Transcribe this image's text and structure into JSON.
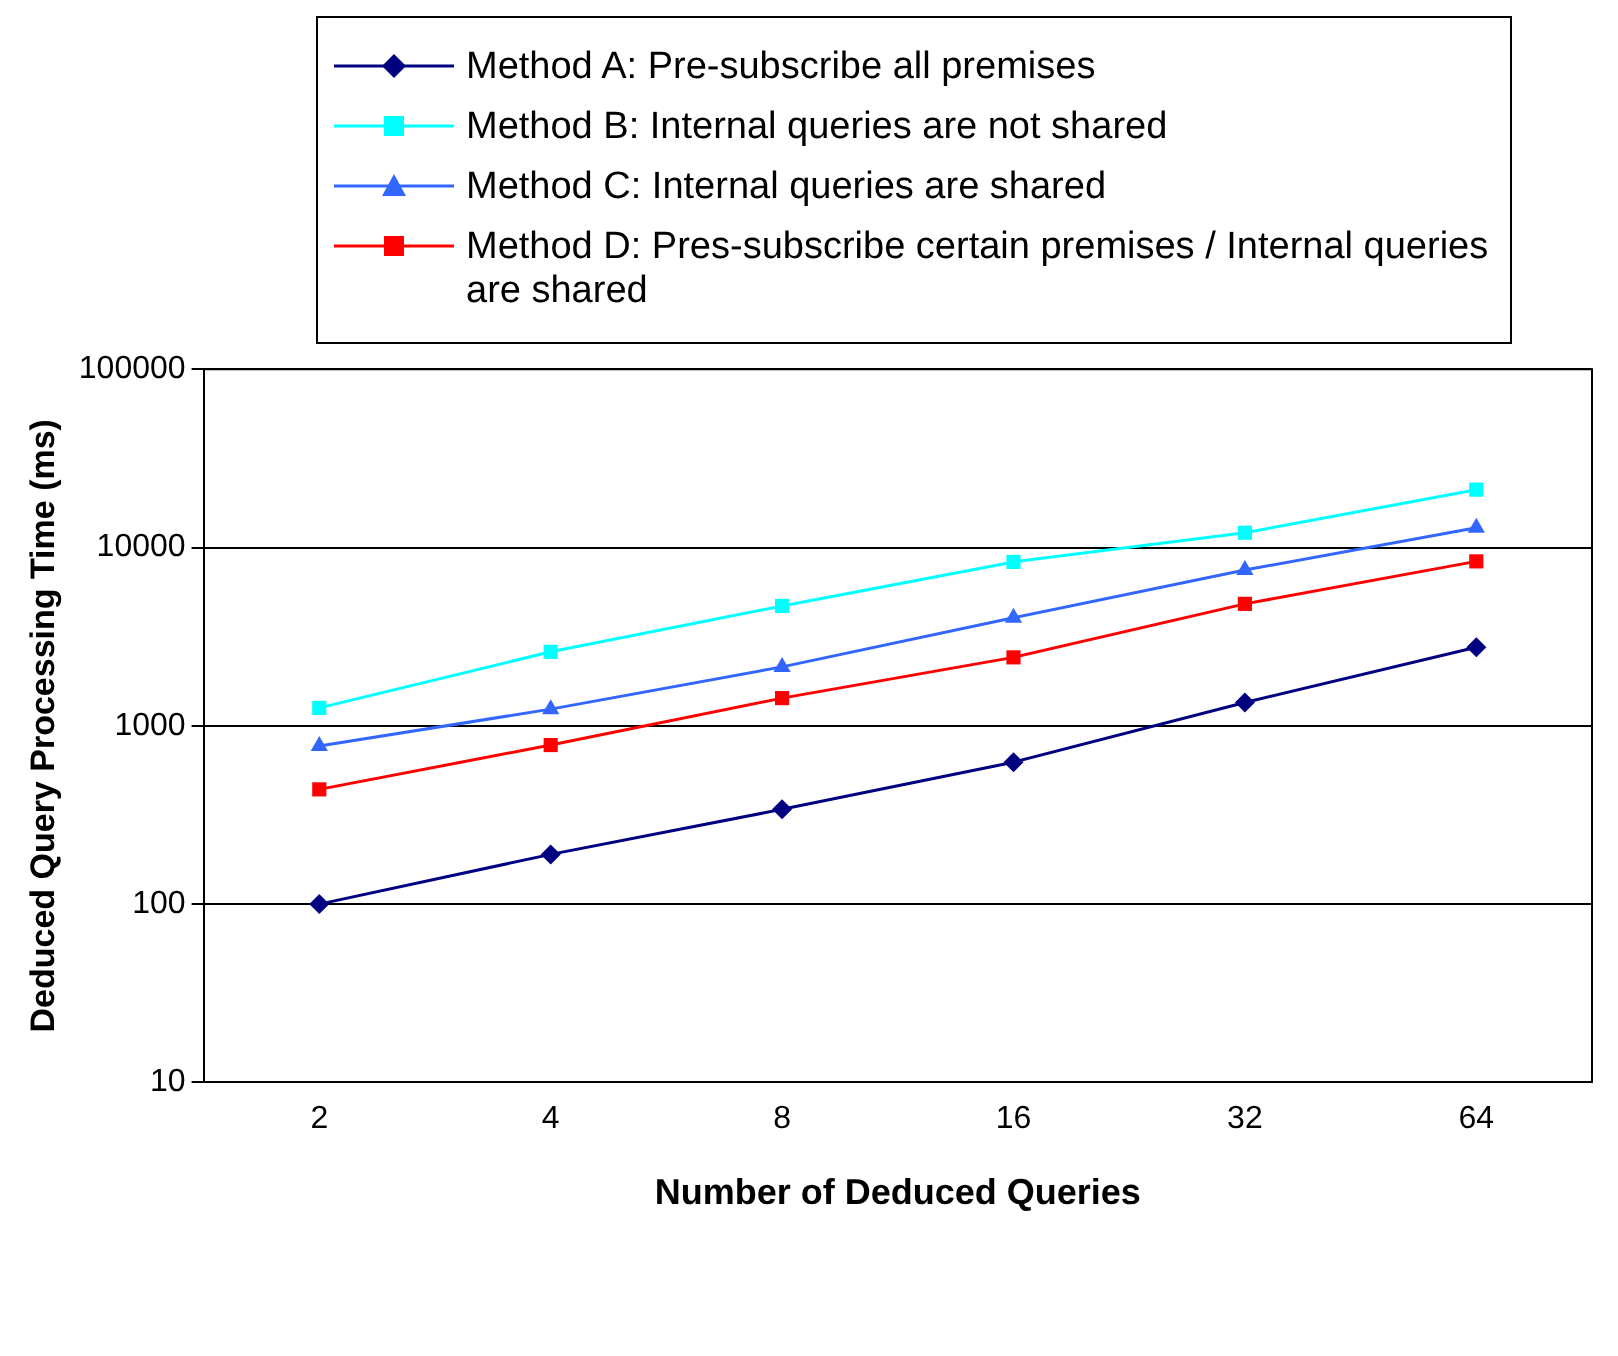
{
  "chart_data": {
    "type": "line",
    "xlabel": "Number of Deduced Queries",
    "ylabel": "Deduced Query Processing Time (ms)",
    "categories": [
      "2",
      "4",
      "8",
      "16",
      "32",
      "64"
    ],
    "series": [
      {
        "name": "Method A: Pre-subscribe all premises",
        "color": "#000080",
        "marker": "diamond",
        "values": [
          100,
          190,
          340,
          625,
          1350,
          2760
        ]
      },
      {
        "name": "Method B: Internal queries are not shared",
        "color": "#00ffff",
        "marker": "square",
        "values": [
          1260,
          2600,
          4700,
          8300,
          12100,
          21100
        ]
      },
      {
        "name": "Method C: Internal queries are shared",
        "color": "#3366ff",
        "marker": "triangle",
        "values": [
          770,
          1240,
          2140,
          4040,
          7480,
          12900
        ]
      },
      {
        "name": "Method D: Pres-subscribe certain premises / Internal queries are shared",
        "color": "#ff0000",
        "marker": "square",
        "values": [
          440,
          780,
          1430,
          2420,
          4830,
          8360
        ]
      }
    ],
    "log": "y",
    "ylim": [
      10,
      100000
    ],
    "yticks": [
      10,
      100,
      1000,
      10000,
      100000
    ],
    "grid": "y",
    "legend": "top",
    "line_style": "solid"
  }
}
